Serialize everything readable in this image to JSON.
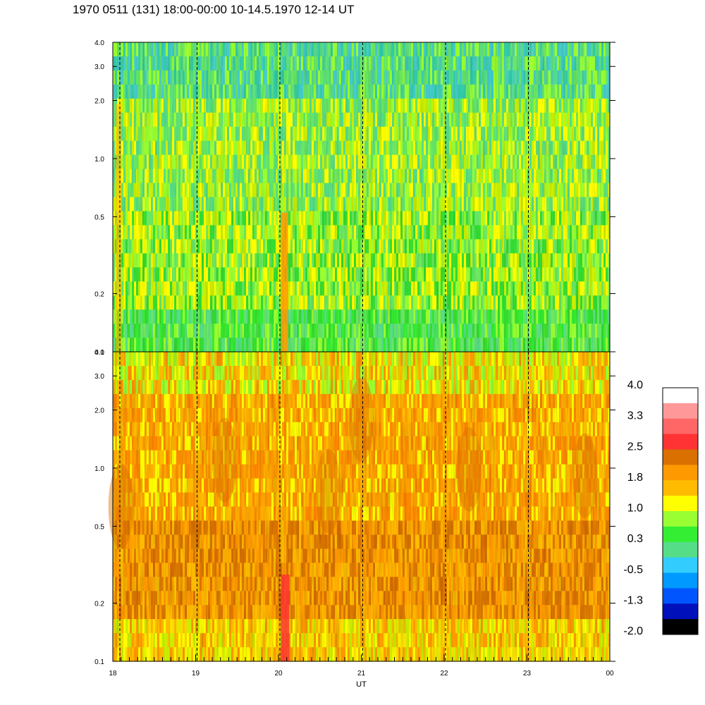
{
  "title": "1970 0511 (131) 18:00-00:00 10-14.5.1970  12-14 UT",
  "chart_data": {
    "type": "heatmap",
    "title": "1970 0511 (131) 18:00-00:00 10-14.5.1970  12-14 UT",
    "xlabel": "UT",
    "x_ticks": [
      "18",
      "19",
      "20",
      "21",
      "22",
      "23",
      "00"
    ],
    "x_range": [
      18,
      24
    ],
    "y_scale": "log",
    "y_ticks": [
      0.1,
      0.2,
      0.5,
      1.0,
      2.0,
      3.0,
      4.0
    ],
    "y_tick_labels": [
      "0.1",
      "0.2",
      "0.5",
      "1.0",
      "2.0",
      "3.0",
      "4.0"
    ],
    "y_range": [
      0.1,
      4.0
    ],
    "hour_markers": [
      18,
      19,
      20,
      21,
      22,
      23
    ],
    "panels": [
      {
        "name": "upper",
        "dominant_level": 0.6,
        "notes": "mostly green/yellow with bright vertical streak near 20.05 UT"
      },
      {
        "name": "lower",
        "dominant_level": 1.8,
        "notes": "mostly orange/yellow with red streak near 20.05 UT"
      }
    ],
    "colorbar": {
      "labels": [
        "4.0",
        "3.3",
        "2.5",
        "1.8",
        "1.0",
        "0.3",
        "-0.5",
        "-1.3",
        "-2.0"
      ],
      "colors": [
        "#ffffff",
        "#ff9999",
        "#ff6666",
        "#ff3333",
        "#d97000",
        "#ff9900",
        "#ffbb00",
        "#ffff00",
        "#99ff33",
        "#33ee33",
        "#55dd88",
        "#33ccff",
        "#0099ff",
        "#0055ff",
        "#0011bb",
        "#000000"
      ]
    }
  }
}
